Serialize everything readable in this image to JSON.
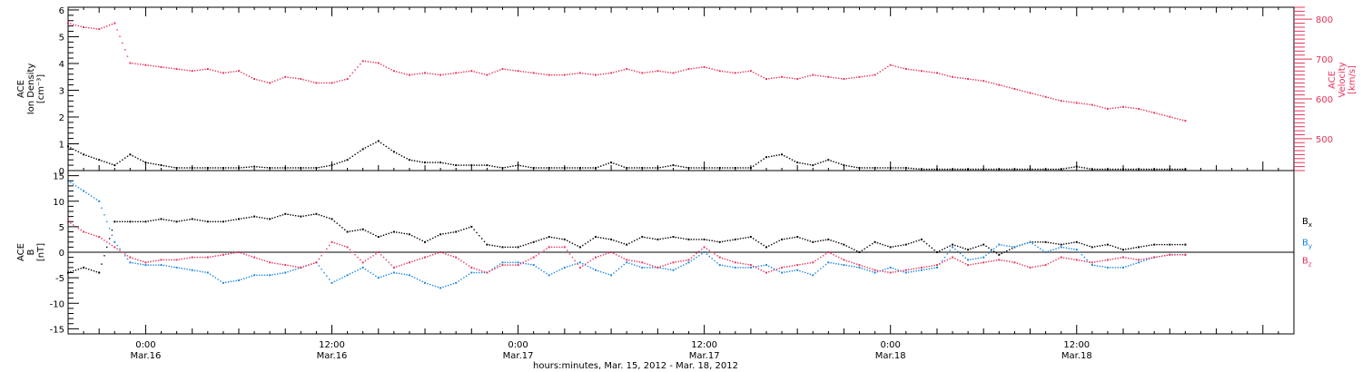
{
  "x_axis": {
    "caption": "hours:minutes, Mar. 15, 2012 - Mar. 18, 2012",
    "ticks": [
      {
        "t": 24,
        "time": "0:00",
        "date": "Mar.16"
      },
      {
        "t": 36,
        "time": "12:00",
        "date": "Mar.16"
      },
      {
        "t": 48,
        "time": "0:00",
        "date": "Mar.17"
      },
      {
        "t": 60,
        "time": "12:00",
        "date": "Mar.17"
      },
      {
        "t": 72,
        "time": "0:00",
        "date": "Mar.18"
      },
      {
        "t": 84,
        "time": "12:00",
        "date": "Mar.18"
      }
    ]
  },
  "chart_data": [
    {
      "type": "scatter",
      "panel": "plasma",
      "x_unit": "hours since 0:00 Mar. 15, 2012",
      "xlim": [
        19,
        98
      ],
      "grid": false,
      "left_axis": {
        "label": [
          "ACE",
          "Ion Density",
          "[cm⁻³]"
        ],
        "ylim": [
          0,
          6.1
        ],
        "tick_labels": [
          "0",
          "1",
          "2",
          "3",
          "4",
          "5",
          "6"
        ]
      },
      "right_axis": {
        "label": [
          "ACE",
          "Velocity",
          "[km/s]"
        ],
        "ylim": [
          420,
          830
        ],
        "tick_labels": [
          "500",
          "600",
          "700",
          "800"
        ],
        "color": "#e8325a"
      },
      "series": [
        {
          "role": "velocity",
          "axis": "right",
          "color": "#e8325a",
          "x": [
            19.0,
            20.0,
            21.0,
            22.0,
            23.0,
            24.0,
            25.0,
            26.0,
            27.0,
            28.0,
            29.0,
            30.0,
            31.0,
            32.0,
            33.0,
            34.0,
            35.0,
            36.0,
            37.0,
            38.0,
            39.0,
            40.0,
            41.0,
            42.0,
            43.0,
            44.0,
            45.0,
            46.0,
            47.0,
            48.0,
            49.0,
            50.0,
            51.0,
            52.0,
            53.0,
            54.0,
            55.0,
            56.0,
            57.0,
            58.0,
            59.0,
            60.0,
            61.0,
            62.0,
            63.0,
            64.0,
            65.0,
            66.0,
            67.0,
            68.0,
            69.0,
            70.0,
            71.0,
            72.0,
            73.0,
            74.0,
            75.0,
            76.0,
            77.0,
            78.0,
            79.0,
            80.0,
            81.0,
            82.0,
            83.0,
            84.0,
            85.0,
            86.0,
            87.0,
            88.0,
            89.0,
            90.0,
            91.0
          ],
          "y": [
            790,
            780,
            775,
            790,
            690,
            685,
            680,
            675,
            670,
            675,
            665,
            670,
            650,
            640,
            655,
            650,
            640,
            640,
            650,
            695,
            690,
            670,
            660,
            665,
            660,
            665,
            670,
            660,
            675,
            670,
            665,
            660,
            660,
            665,
            660,
            665,
            675,
            665,
            670,
            665,
            675,
            680,
            670,
            665,
            670,
            650,
            655,
            650,
            660,
            655,
            650,
            655,
            660,
            685,
            675,
            670,
            665,
            655,
            650,
            645,
            635,
            625,
            615,
            605,
            595,
            590,
            585,
            575,
            580,
            575,
            565,
            555,
            545
          ]
        },
        {
          "role": "ion_density",
          "axis": "left",
          "color": "#000000",
          "x": [
            19.0,
            20.0,
            21.0,
            22.0,
            23.0,
            24.0,
            25.0,
            26.0,
            27.0,
            28.0,
            29.0,
            30.0,
            31.0,
            32.0,
            33.0,
            34.0,
            35.0,
            36.0,
            37.0,
            38.0,
            39.0,
            40.0,
            41.0,
            42.0,
            43.0,
            44.0,
            45.0,
            46.0,
            47.0,
            48.0,
            49.0,
            50.0,
            51.0,
            52.0,
            53.0,
            54.0,
            55.0,
            56.0,
            57.0,
            58.0,
            59.0,
            60.0,
            61.0,
            62.0,
            63.0,
            64.0,
            65.0,
            66.0,
            67.0,
            68.0,
            69.0,
            70.0,
            71.0,
            72.0,
            73.0,
            74.0,
            75.0,
            76.0,
            77.0,
            78.0,
            79.0,
            80.0,
            81.0,
            82.0,
            83.0,
            84.0,
            85.0,
            86.0,
            87.0,
            88.0,
            89.0,
            90.0,
            91.0
          ],
          "y": [
            0.9,
            0.6,
            0.4,
            0.2,
            0.6,
            0.3,
            0.2,
            0.1,
            0.1,
            0.1,
            0.1,
            0.1,
            0.15,
            0.1,
            0.1,
            0.1,
            0.1,
            0.2,
            0.4,
            0.8,
            1.1,
            0.7,
            0.4,
            0.3,
            0.3,
            0.2,
            0.2,
            0.2,
            0.1,
            0.2,
            0.1,
            0.1,
            0.1,
            0.1,
            0.1,
            0.3,
            0.1,
            0.1,
            0.1,
            0.2,
            0.1,
            0.1,
            0.1,
            0.1,
            0.1,
            0.5,
            0.6,
            0.3,
            0.2,
            0.4,
            0.2,
            0.1,
            0.1,
            0.1,
            0.1,
            0.05,
            0.05,
            0.05,
            0.05,
            0.05,
            0.05,
            0.05,
            0.05,
            0.05,
            0.05,
            0.15,
            0.05,
            0.05,
            0.05,
            0.05,
            0.05,
            0.05,
            0.05
          ]
        }
      ]
    },
    {
      "type": "scatter",
      "panel": "magnetic_field",
      "x_unit": "hours since 0:00 Mar. 15, 2012",
      "xlim": [
        19,
        98
      ],
      "ylim": [
        -16,
        16
      ],
      "grid": false,
      "zero_line": true,
      "left_axis": {
        "label": [
          "ACE",
          "B",
          "[nT]"
        ],
        "tick_labels": [
          "-15",
          "-10",
          "-5",
          "0",
          "5",
          "10",
          "15"
        ]
      },
      "legend_placement": "right",
      "series": [
        {
          "name": "B",
          "sub": "x",
          "color": "#000000",
          "x": [
            19.0,
            20.0,
            21.0,
            22.0,
            23.0,
            24.0,
            25.0,
            26.0,
            27.0,
            28.0,
            29.0,
            30.0,
            31.0,
            32.0,
            33.0,
            34.0,
            35.0,
            36.0,
            37.0,
            38.0,
            39.0,
            40.0,
            41.0,
            42.0,
            43.0,
            44.0,
            45.0,
            46.0,
            47.0,
            48.0,
            49.0,
            50.0,
            51.0,
            52.0,
            53.0,
            54.0,
            55.0,
            56.0,
            57.0,
            58.0,
            59.0,
            60.0,
            61.0,
            62.0,
            63.0,
            64.0,
            65.0,
            66.0,
            67.0,
            68.0,
            69.0,
            70.0,
            71.0,
            72.0,
            73.0,
            74.0,
            75.0,
            76.0,
            77.0,
            78.0,
            79.0,
            80.0,
            81.0,
            82.0,
            83.0,
            84.0,
            85.0,
            86.0,
            87.0,
            88.0,
            89.0,
            90.0,
            91.0
          ],
          "y": [
            -4,
            -3,
            -4,
            6,
            6,
            6,
            6.5,
            6,
            6.5,
            6,
            6,
            6.5,
            7,
            6.5,
            7.5,
            7,
            7.5,
            6.5,
            4,
            4.5,
            3,
            4,
            3.5,
            2,
            3.5,
            4,
            5,
            1.5,
            1,
            1,
            2,
            3,
            2.5,
            1,
            3,
            2.5,
            1.5,
            3,
            2.5,
            3,
            2.5,
            2.5,
            2,
            2.5,
            3,
            1,
            2.5,
            3,
            2,
            2.5,
            1.5,
            0,
            2,
            1,
            1.5,
            2.5,
            0,
            1.5,
            0.5,
            1.5,
            -0.5,
            1,
            2,
            2,
            1.5,
            2,
            1,
            1.5,
            0.5,
            1,
            1.5,
            1.5,
            1.5
          ]
        },
        {
          "name": "B",
          "sub": "y",
          "color": "#1a86e0",
          "x": [
            19.0,
            20.0,
            21.0,
            22.0,
            23.0,
            24.0,
            25.0,
            26.0,
            27.0,
            28.0,
            29.0,
            30.0,
            31.0,
            32.0,
            33.0,
            34.0,
            35.0,
            36.0,
            37.0,
            38.0,
            39.0,
            40.0,
            41.0,
            42.0,
            43.0,
            44.0,
            45.0,
            46.0,
            47.0,
            48.0,
            49.0,
            50.0,
            51.0,
            52.0,
            53.0,
            54.0,
            55.0,
            56.0,
            57.0,
            58.0,
            59.0,
            60.0,
            61.0,
            62.0,
            63.0,
            64.0,
            65.0,
            66.0,
            67.0,
            68.0,
            69.0,
            70.0,
            71.0,
            72.0,
            73.0,
            74.0,
            75.0,
            76.0,
            77.0,
            78.0,
            79.0,
            80.0,
            81.0,
            82.0,
            83.0,
            84.0,
            85.0,
            86.0,
            87.0,
            88.0,
            89.0,
            90.0,
            91.0
          ],
          "y": [
            14,
            12,
            10,
            2,
            -2,
            -2.5,
            -2.5,
            -3,
            -3.5,
            -4,
            -6,
            -5.5,
            -4.5,
            -4.5,
            -4,
            -3,
            -2,
            -6,
            -4.5,
            -3,
            -5,
            -4,
            -4.5,
            -6,
            -7,
            -6,
            -4,
            -4,
            -2,
            -2,
            -2.5,
            -4.5,
            -3,
            -2,
            -3.5,
            -4.5,
            -2,
            -3,
            -3,
            -3.5,
            -2,
            0,
            -2.5,
            -3,
            -3,
            -2.5,
            -4,
            -3.5,
            -4.5,
            -2,
            -2.5,
            -3,
            -4,
            -3,
            -4,
            -3.5,
            -3,
            1,
            -1.5,
            -1,
            1.5,
            1,
            2,
            0,
            1,
            0.5,
            -2.5,
            -3,
            -3,
            -2,
            -1,
            -0.5,
            -0.5
          ]
        },
        {
          "name": "B",
          "sub": "z",
          "color": "#e8325a",
          "x": [
            19.0,
            20.0,
            21.0,
            22.0,
            23.0,
            24.0,
            25.0,
            26.0,
            27.0,
            28.0,
            29.0,
            30.0,
            31.0,
            32.0,
            33.0,
            34.0,
            35.0,
            36.0,
            37.0,
            38.0,
            39.0,
            40.0,
            41.0,
            42.0,
            43.0,
            44.0,
            45.0,
            46.0,
            47.0,
            48.0,
            49.0,
            50.0,
            51.0,
            52.0,
            53.0,
            54.0,
            55.0,
            56.0,
            57.0,
            58.0,
            59.0,
            60.0,
            61.0,
            62.0,
            63.0,
            64.0,
            65.0,
            66.0,
            67.0,
            68.0,
            69.0,
            70.0,
            71.0,
            72.0,
            73.0,
            74.0,
            75.0,
            76.0,
            77.0,
            78.0,
            79.0,
            80.0,
            81.0,
            82.0,
            83.0,
            84.0,
            85.0,
            86.0,
            87.0,
            88.0,
            89.0,
            90.0,
            91.0
          ],
          "y": [
            6,
            4,
            3,
            1,
            -1,
            -2,
            -1.5,
            -1.5,
            -1,
            -1,
            -0.5,
            0,
            -1,
            -2,
            -2.5,
            -3,
            -2,
            2,
            1,
            -2,
            0,
            -3,
            -2,
            -1,
            0,
            -1,
            -3,
            -4,
            -2.5,
            -2.5,
            -1,
            1,
            1,
            -3,
            -1,
            0,
            -1.5,
            -2,
            -3,
            -2,
            -1.5,
            1,
            -1,
            -2,
            -2.5,
            -4,
            -3,
            -2.5,
            -2,
            0,
            -1.5,
            -2.5,
            -3.5,
            -4,
            -3.5,
            -3,
            -2.5,
            -1,
            -2.5,
            -2,
            -1.5,
            -2,
            -3,
            -2.5,
            -1,
            -1.5,
            -2,
            -1.5,
            -1,
            -1.5,
            -1,
            -0.5,
            -0.5
          ]
        }
      ]
    }
  ]
}
